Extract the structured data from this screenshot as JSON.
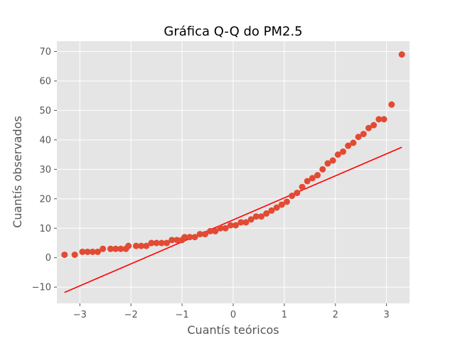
{
  "chart_data": {
    "type": "scatter",
    "title": "Gráfica Q-Q do PM2.5",
    "xlabel": "Cuantís teóricos",
    "ylabel": "Cuantís observados",
    "xlim": [
      -3.45,
      3.45
    ],
    "ylim": [
      -15.5,
      73.5
    ],
    "xticks": [
      {
        "value": -3,
        "label": "−3"
      },
      {
        "value": -2,
        "label": "−2"
      },
      {
        "value": -1,
        "label": "−1"
      },
      {
        "value": 0,
        "label": "0"
      },
      {
        "value": 1,
        "label": "1"
      },
      {
        "value": 2,
        "label": "2"
      },
      {
        "value": 3,
        "label": "3"
      }
    ],
    "yticks": [
      {
        "value": -10,
        "label": "−10"
      },
      {
        "value": 0,
        "label": "0"
      },
      {
        "value": 10,
        "label": "10"
      },
      {
        "value": 20,
        "label": "20"
      },
      {
        "value": 30,
        "label": "30"
      },
      {
        "value": 40,
        "label": "40"
      },
      {
        "value": 50,
        "label": "50"
      },
      {
        "value": 60,
        "label": "60"
      },
      {
        "value": 70,
        "label": "70"
      }
    ],
    "grid": true,
    "background": "#e5e5e5",
    "point_color": "#e24a33",
    "line_color": "#ff0000",
    "points": [
      [
        -3.3,
        1
      ],
      [
        -3.1,
        1
      ],
      [
        -2.95,
        2
      ],
      [
        -2.85,
        2
      ],
      [
        -2.75,
        2
      ],
      [
        -2.65,
        2
      ],
      [
        -2.55,
        3
      ],
      [
        -2.4,
        3
      ],
      [
        -2.3,
        3
      ],
      [
        -2.2,
        3
      ],
      [
        -2.1,
        3
      ],
      [
        -2.05,
        4
      ],
      [
        -1.9,
        4
      ],
      [
        -1.8,
        4
      ],
      [
        -1.7,
        4
      ],
      [
        -1.6,
        5
      ],
      [
        -1.5,
        5
      ],
      [
        -1.4,
        5
      ],
      [
        -1.3,
        5
      ],
      [
        -1.2,
        6
      ],
      [
        -1.1,
        6
      ],
      [
        -1.0,
        6
      ],
      [
        -0.95,
        7
      ],
      [
        -0.85,
        7
      ],
      [
        -0.75,
        7
      ],
      [
        -0.65,
        8
      ],
      [
        -0.55,
        8
      ],
      [
        -0.45,
        9
      ],
      [
        -0.35,
        9
      ],
      [
        -0.25,
        10
      ],
      [
        -0.15,
        10
      ],
      [
        -0.05,
        11
      ],
      [
        0.05,
        11
      ],
      [
        0.15,
        12
      ],
      [
        0.25,
        12
      ],
      [
        0.35,
        13
      ],
      [
        0.45,
        14
      ],
      [
        0.55,
        14
      ],
      [
        0.65,
        15
      ],
      [
        0.75,
        16
      ],
      [
        0.85,
        17
      ],
      [
        0.95,
        18
      ],
      [
        1.05,
        19
      ],
      [
        1.15,
        21
      ],
      [
        1.25,
        22
      ],
      [
        1.35,
        24
      ],
      [
        1.45,
        26
      ],
      [
        1.55,
        27
      ],
      [
        1.65,
        28
      ],
      [
        1.75,
        30
      ],
      [
        1.85,
        32
      ],
      [
        1.95,
        33
      ],
      [
        2.05,
        35
      ],
      [
        2.15,
        36
      ],
      [
        2.25,
        38
      ],
      [
        2.35,
        39
      ],
      [
        2.45,
        41
      ],
      [
        2.55,
        42
      ],
      [
        2.65,
        44
      ],
      [
        2.75,
        45
      ],
      [
        2.85,
        47
      ],
      [
        2.95,
        47
      ],
      [
        3.1,
        52
      ],
      [
        3.3,
        69
      ]
    ],
    "fit_line": [
      [
        -3.3,
        -11.8
      ],
      [
        3.3,
        37.5
      ]
    ]
  }
}
